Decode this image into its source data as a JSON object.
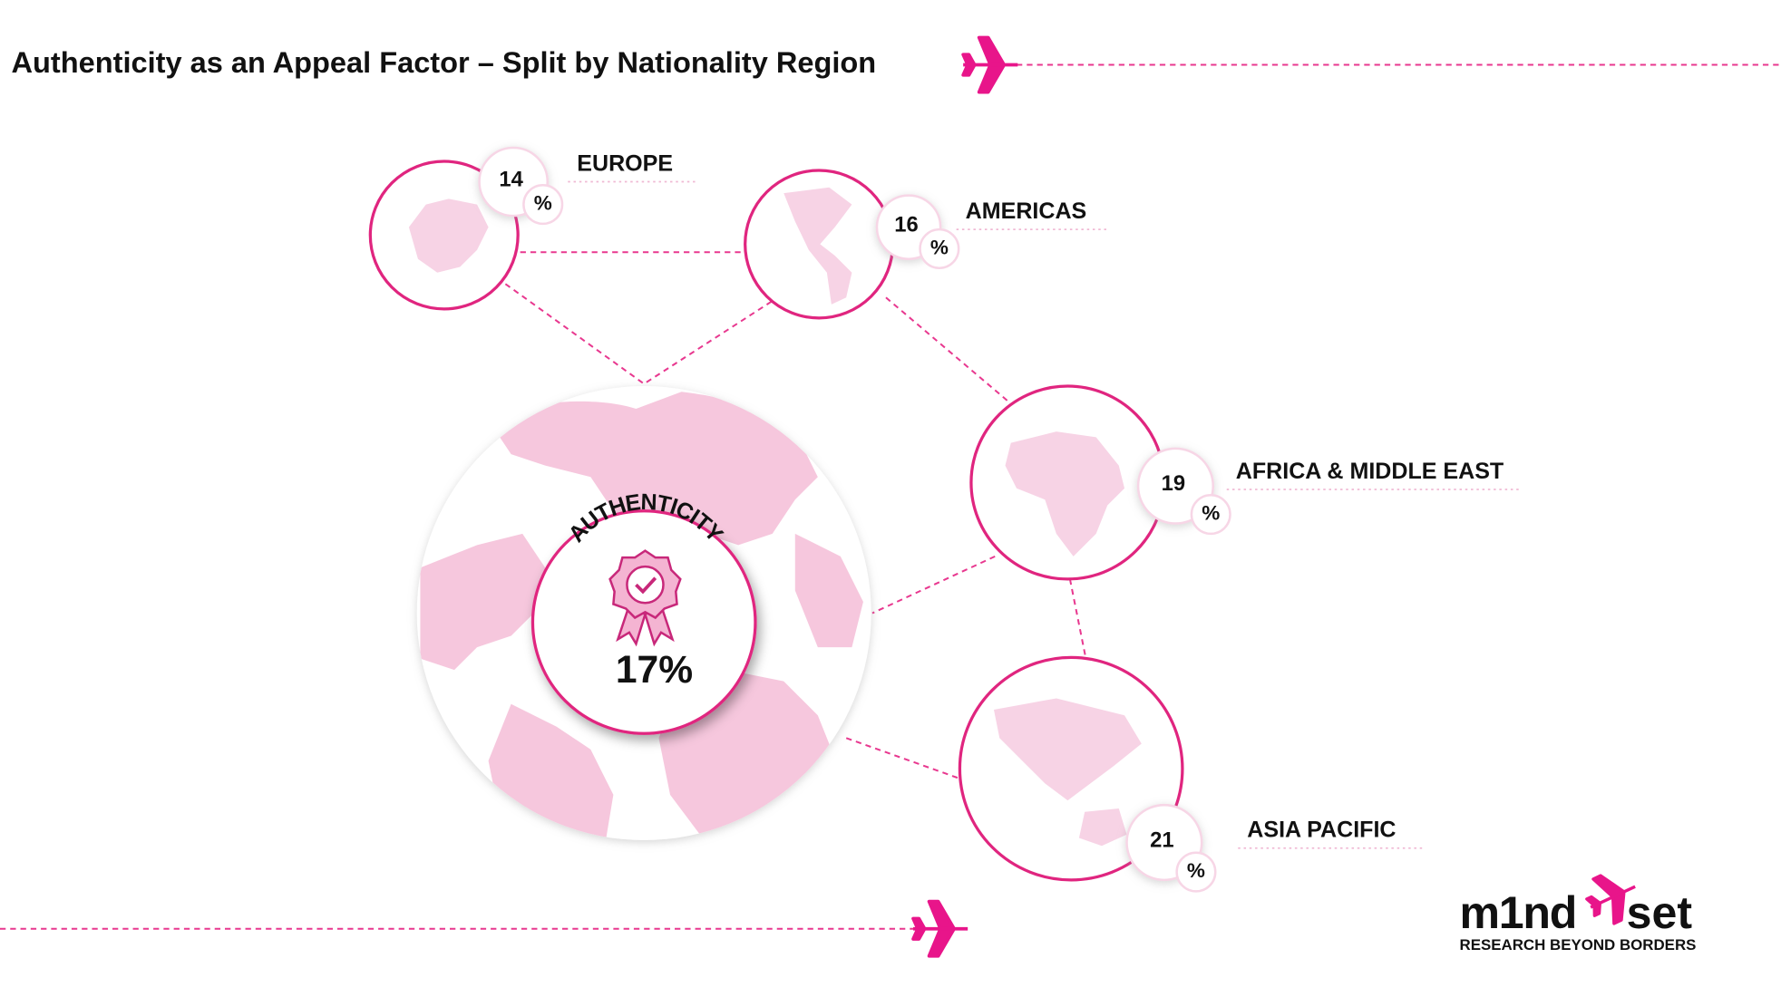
{
  "header": {
    "title": "Authenticity as an Appeal Factor – Split by Nationality Region"
  },
  "center": {
    "label": "AUTHENTICITY",
    "value": "17%"
  },
  "regions": [
    {
      "name": "EUROPE",
      "value": "14",
      "unit": "%"
    },
    {
      "name": "AMERICAS",
      "value": "16",
      "unit": "%"
    },
    {
      "name": "AFRICA & MIDDLE EAST",
      "value": "19",
      "unit": "%"
    },
    {
      "name": "ASIA PACIFIC",
      "value": "21",
      "unit": "%"
    }
  ],
  "logo": {
    "word_left": "m1nd",
    "word_right": "set",
    "tagline": "RESEARCH BEYOND BORDERS"
  }
}
